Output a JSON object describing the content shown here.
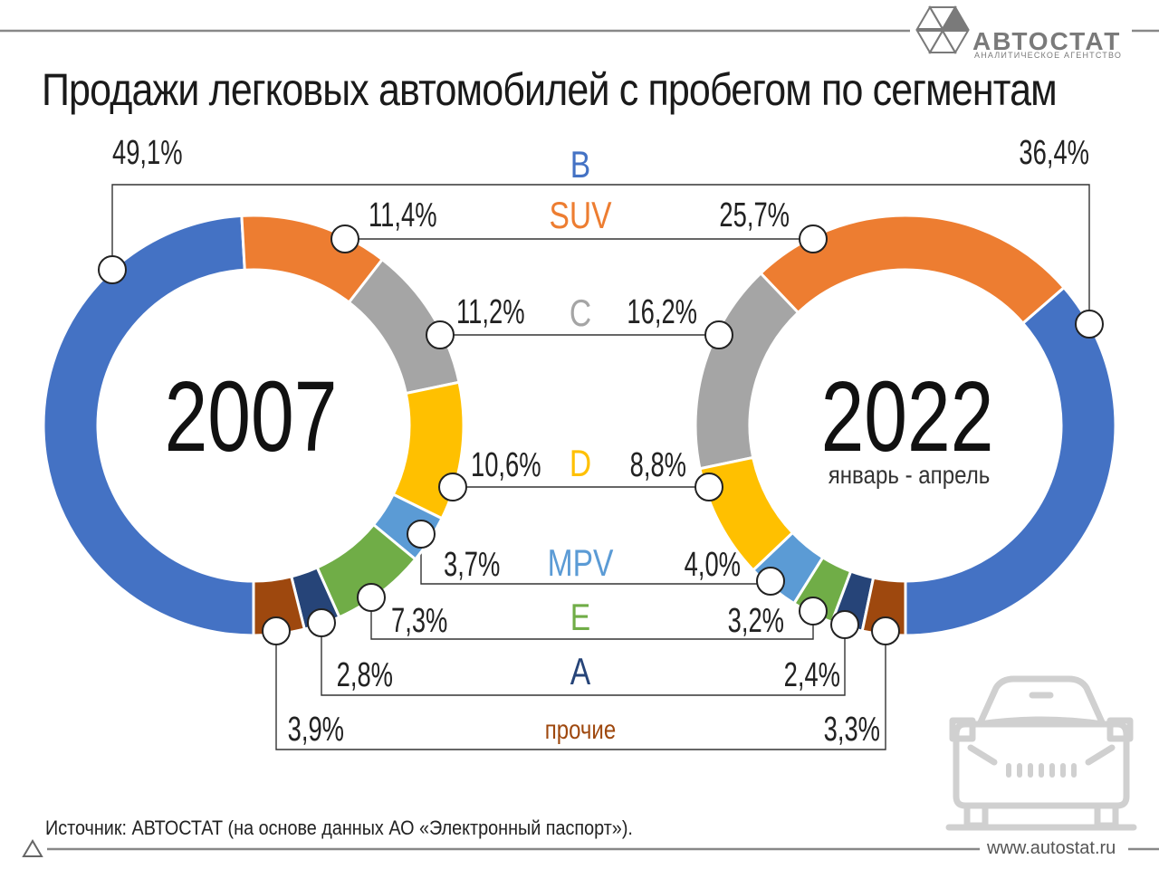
{
  "title": "Продажи легковых автомобилей с пробегом по сегментам",
  "source": "Источник: АВТОСТАТ (на основе данных АО «Электронный паспорт»).",
  "url": "www.autostat.ru",
  "logo": {
    "name": "АВТОСТАТ",
    "tagline": "АНАЛИТИЧЕСКОЕ АГЕНТСТВО"
  },
  "colors": {
    "B": "#4472c4",
    "SUV": "#ed7d31",
    "C": "#a5a5a5",
    "D": "#ffc000",
    "MPV": "#5b9bd5",
    "E": "#70ad47",
    "A": "#264478",
    "other": "#9e480e"
  },
  "chart_data": {
    "type": "pie",
    "variant": "paired-donut",
    "segments": [
      "B",
      "SUV",
      "C",
      "D",
      "MPV",
      "E",
      "A",
      "прочие"
    ],
    "series": [
      {
        "name": "2007",
        "values": [
          49.1,
          11.4,
          11.2,
          10.6,
          3.7,
          7.3,
          2.8,
          3.9
        ],
        "labels": [
          "49,1%",
          "11,4%",
          "11,2%",
          "10,6%",
          "3,7%",
          "7,3%",
          "2,8%",
          "3,9%"
        ]
      },
      {
        "name": "2022",
        "subtitle": "январь - апрель",
        "values": [
          36.4,
          25.7,
          16.2,
          8.8,
          4.0,
          3.2,
          2.4,
          3.3
        ],
        "labels": [
          "36,4%",
          "25,7%",
          "16,2%",
          "8,8%",
          "4,0%",
          "3,2%",
          "2,4%",
          "3,3%"
        ]
      }
    ]
  }
}
